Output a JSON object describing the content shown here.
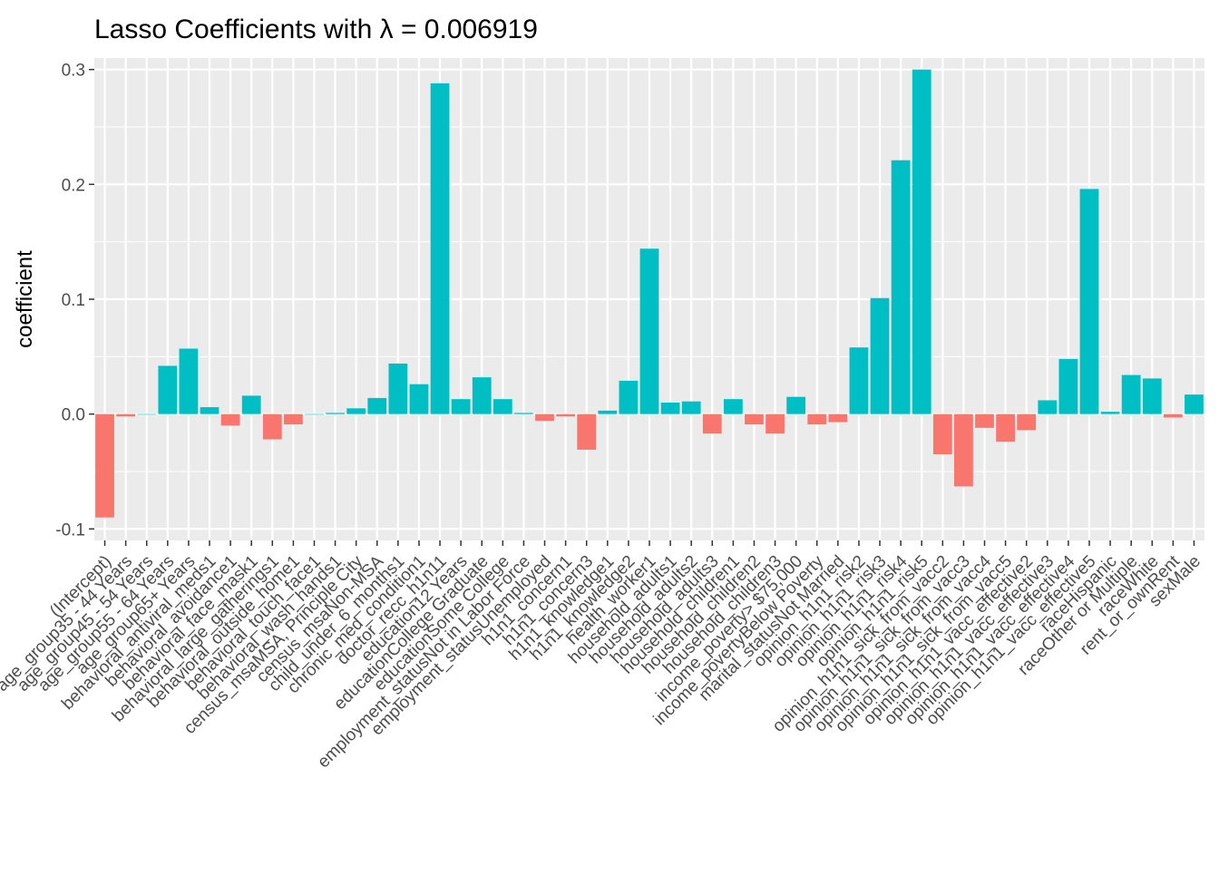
{
  "chart_data": {
    "type": "bar",
    "title": "Lasso Coefficients with λ = 0.006919",
    "xlabel": "",
    "ylabel": "coefficient",
    "ylim": [
      -0.11,
      0.31
    ],
    "yticks": [
      -0.1,
      0.0,
      0.1,
      0.2,
      0.3
    ],
    "ytick_labels": [
      "-0.1",
      "0.0",
      "0.1",
      "0.2",
      "0.3"
    ],
    "grid": true,
    "legend": "none",
    "colors": {
      "negative": "#F8766D",
      "positive": "#00BFC4",
      "panel": "#EBEBEB",
      "grid": "#FFFFFF"
    },
    "categories": [
      "(Intercept)",
      "age_group35 - 44 Years",
      "age_group45 - 54 Years",
      "age_group55 - 64 Years",
      "age_group65+ Years",
      "behavioral_antiviral_meds1",
      "behavioral_avoidance1",
      "behavioral_face_mask1",
      "behavioral_large_gatherings1",
      "behavioral_outside_home1",
      "behavioral_touch_face1",
      "behavioral_wash_hands1",
      "census_msaMSA, Principle City",
      "census_msaNon-MSA",
      "child_under_6_months1",
      "chronic_med_condition1",
      "doctor_recc_h1n11",
      "education12 Years",
      "educationCollege Graduate",
      "educationSome College",
      "employment_statusNot in Labor Force",
      "employment_statusUnemployed",
      "h1n1_concern1",
      "h1n1_concern3",
      "h1n1_knowledge1",
      "h1n1_knowledge2",
      "health_worker1",
      "household_adults1",
      "household_adults2",
      "household_adults3",
      "household_children1",
      "household_children2",
      "household_children3",
      "income_poverty> $75,000",
      "income_povertyBelow Poverty",
      "marital_statusNot Married",
      "opinion_h1n1_risk2",
      "opinion_h1n1_risk3",
      "opinion_h1n1_risk4",
      "opinion_h1n1_risk5",
      "opinion_h1n1_sick_from_vacc2",
      "opinion_h1n1_sick_from_vacc3",
      "opinion_h1n1_sick_from_vacc4",
      "opinion_h1n1_sick_from_vacc5",
      "opinion_h1n1_vacc_effective2",
      "opinion_h1n1_vacc_effective3",
      "opinion_h1n1_vacc_effective4",
      "opinion_h1n1_vacc_effective5",
      "raceHispanic",
      "raceOther or Multiple",
      "raceWhite",
      "rent_or_ownRent",
      "sexMale"
    ],
    "values": [
      -0.09,
      -0.002,
      0.0,
      0.042,
      0.057,
      0.006,
      -0.01,
      0.016,
      -0.022,
      -0.009,
      0.0,
      0.001,
      0.005,
      0.014,
      0.044,
      0.026,
      0.288,
      0.013,
      0.032,
      0.013,
      0.001,
      -0.006,
      -0.002,
      -0.031,
      0.003,
      0.029,
      0.144,
      0.01,
      0.011,
      -0.017,
      0.013,
      -0.009,
      -0.017,
      0.015,
      -0.009,
      -0.007,
      0.058,
      0.101,
      0.221,
      0.3,
      -0.035,
      -0.063,
      -0.012,
      -0.024,
      -0.014,
      0.012,
      0.048,
      0.196,
      0.002,
      0.034,
      0.031,
      -0.003,
      0.017
    ]
  }
}
